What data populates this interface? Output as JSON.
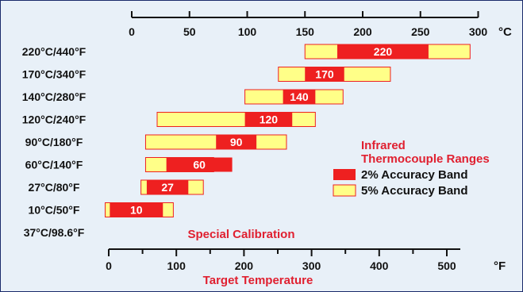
{
  "chart_data": {
    "type": "bar",
    "subtype": "horizontal-range",
    "top_axis": {
      "unit": "°C",
      "ticks": [
        "0",
        "50",
        "100",
        "150",
        "200",
        "250",
        "300"
      ],
      "range": [
        0,
        300
      ]
    },
    "bottom_axis": {
      "unit": "°F",
      "ticks": [
        "0",
        "100",
        "200",
        "300",
        "400",
        "500"
      ],
      "range": [
        0,
        500
      ],
      "title": "Target Temperature"
    },
    "legend": {
      "title_line1": "Infrared",
      "title_line2": "Thermocouple Ranges",
      "entries": [
        {
          "label": "2% Accuracy Band",
          "color": "#ee2020"
        },
        {
          "label": "5% Accuracy Band",
          "color": "#ffff88"
        }
      ],
      "placement": "right"
    },
    "special_note": "Special Calibration",
    "rows": [
      {
        "label": "220°C/440°F",
        "center_label": "220",
        "band5_c": [
          150,
          293
        ],
        "band2_c": [
          178,
          257
        ]
      },
      {
        "label": "170°C/340°F",
        "center_label": "170",
        "band5_c": [
          127,
          224
        ],
        "band2_c": [
          150,
          184
        ]
      },
      {
        "label": "140°C/280°F",
        "center_label": "140",
        "band5_c": [
          98,
          183
        ],
        "band2_c": [
          131,
          159
        ]
      },
      {
        "label": "120°C/240°F",
        "center_label": "120",
        "band5_c": [
          22,
          159
        ],
        "band2_c": [
          98,
          139
        ]
      },
      {
        "label": "90°C/180°F",
        "center_label": "90",
        "band5_c": [
          12,
          134
        ],
        "band2_c": [
          73,
          108
        ]
      },
      {
        "label": "60°C/140°F",
        "center_label": "60",
        "band5_c": [
          12,
          71
        ],
        "band2_c": [
          30,
          87
        ]
      },
      {
        "label": "27°C/80°F",
        "center_label": "27",
        "band5_c": [
          8,
          62
        ],
        "band2_c": [
          13,
          49
        ]
      },
      {
        "label": "10°C/50°F",
        "center_label": "10",
        "band5_c": [
          -23,
          36
        ],
        "band2_c": [
          -19,
          27
        ]
      },
      {
        "label": "37°C/98.6°F",
        "center_label": "",
        "band5_c": null,
        "band2_c": null
      }
    ],
    "colors": {
      "band2": "#ee2020",
      "band5": "#ffff88",
      "band_border": "#ee2020",
      "accent_text": "#e02030",
      "axis": "#111111",
      "background": "#e8f0f8",
      "frame": "#1a2a6a"
    }
  }
}
